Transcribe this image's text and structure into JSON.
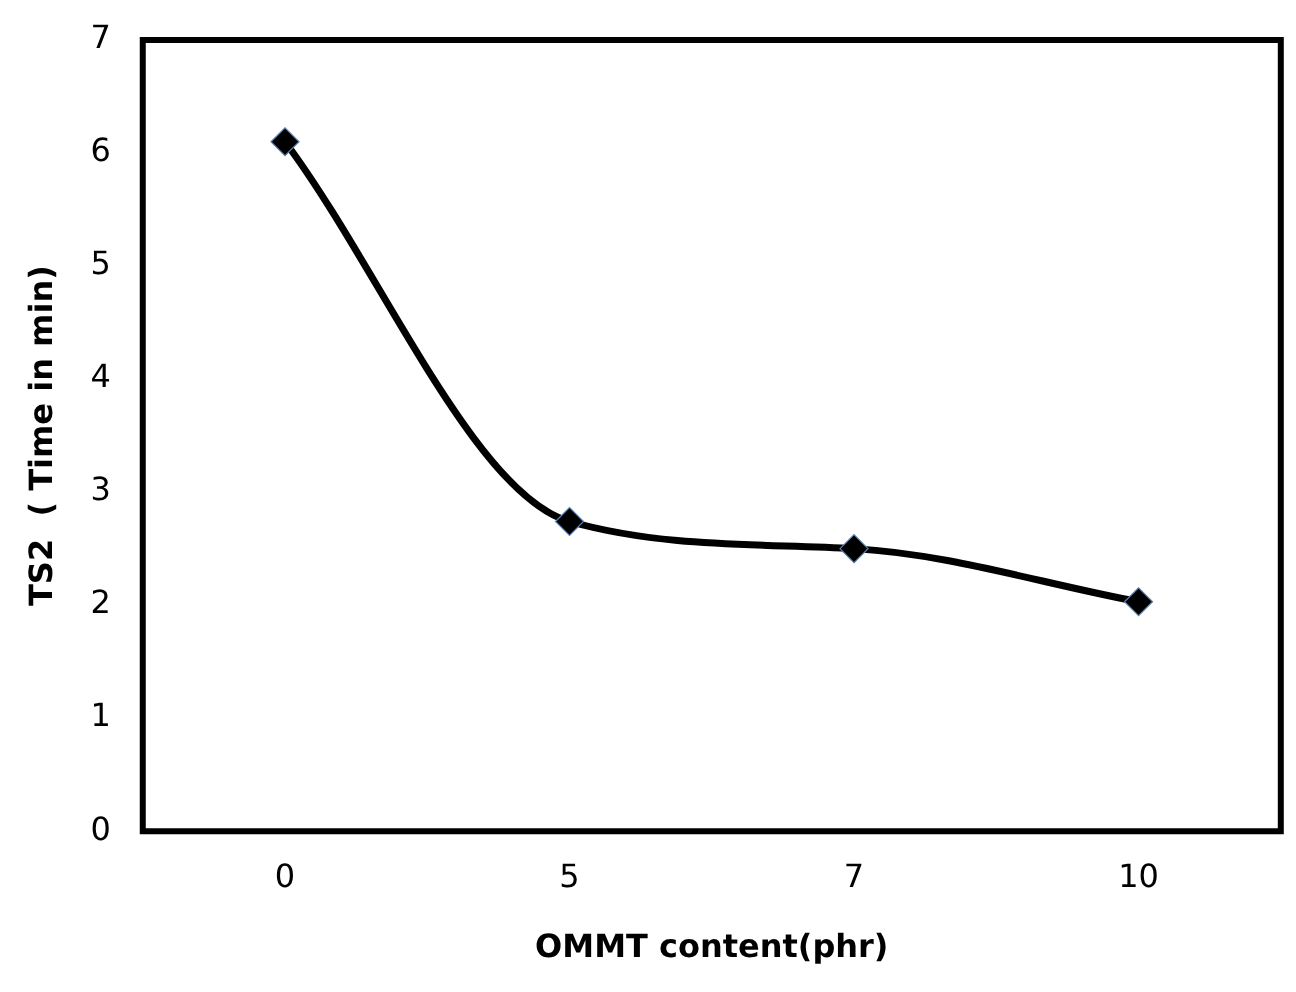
{
  "chart_data": {
    "type": "line",
    "xlabel": "OMMT content(phr)",
    "ylabel": "TS2  ( Time in min)",
    "categories": [
      "0",
      "5",
      "7",
      "10"
    ],
    "series": [
      {
        "color": "#000000",
        "values": [
          6.1,
          2.74,
          2.5,
          2.03
        ]
      }
    ],
    "ylim": [
      0,
      7
    ],
    "yticks": [
      0,
      1,
      2,
      3,
      4,
      5,
      6,
      7
    ],
    "grid": false,
    "legend": false,
    "marker": "diamond",
    "line_style": "solid"
  }
}
